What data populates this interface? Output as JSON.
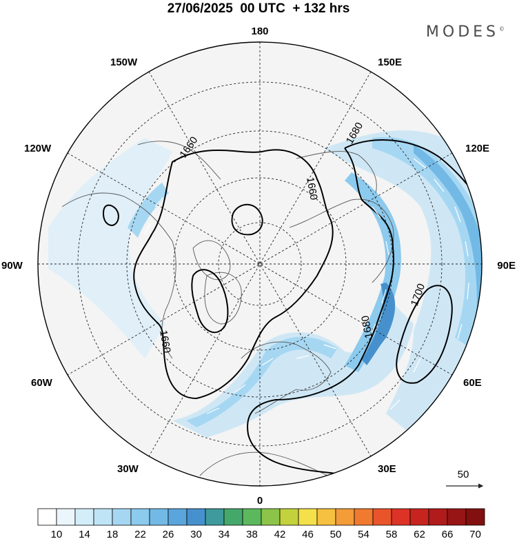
{
  "header": {
    "title": "27/06/2025  00 UTC  + 132 hrs",
    "brand": "MODES",
    "brand_mark": "©"
  },
  "map": {
    "projection": "polar stereographic (north)",
    "longitude_labels": {
      "top": "180",
      "bottom": "0",
      "left": "90W",
      "right": "90E",
      "upper_left_outer": "150W",
      "upper_left_inner": "120W",
      "lower_left_inner": "60W",
      "lower_left_outer": "30W",
      "upper_right_outer": "150E",
      "upper_right_inner": "120E",
      "lower_right_inner": "60E",
      "lower_right_outer": "30E"
    },
    "contour_labels": [
      "1660",
      "1660",
      "1660",
      "1680",
      "1680",
      "1700"
    ],
    "vector_reference": "50"
  },
  "colorbar": {
    "labels": [
      "10",
      "14",
      "18",
      "22",
      "26",
      "30",
      "34",
      "38",
      "42",
      "46",
      "50",
      "54",
      "58",
      "62",
      "66",
      "70"
    ],
    "colors": [
      "#ffffff",
      "#eaf6fb",
      "#d4eef9",
      "#bfe4f6",
      "#a6d7f2",
      "#8ccaee",
      "#72b9e6",
      "#5aa6dc",
      "#4691cd",
      "#3f9a9c",
      "#45a86b",
      "#5cb85c",
      "#8cc44a",
      "#c3d23c",
      "#f4e04a",
      "#f6c040",
      "#f49c38",
      "#f07a30",
      "#e9542a",
      "#dc3326",
      "#c8241f",
      "#b01b1b",
      "#981515",
      "#821010"
    ]
  }
}
